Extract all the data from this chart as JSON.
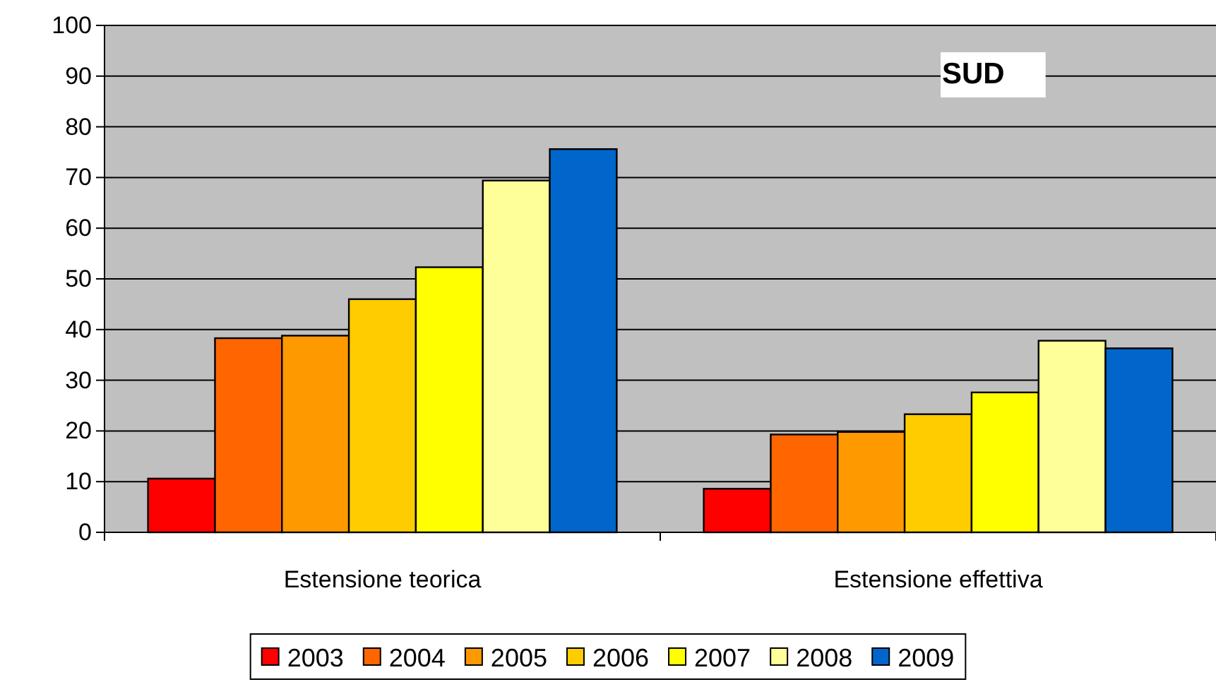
{
  "chart_data": {
    "type": "bar",
    "title": "SUD",
    "categories": [
      "Estensione teorica",
      "Estensione effettiva"
    ],
    "series": [
      {
        "name": "2003",
        "color": "#ff0000",
        "values": [
          10.6,
          8.6
        ]
      },
      {
        "name": "2004",
        "color": "#ff6600",
        "values": [
          38.3,
          19.3
        ]
      },
      {
        "name": "2005",
        "color": "#ff9900",
        "values": [
          38.8,
          19.8
        ]
      },
      {
        "name": "2006",
        "color": "#ffcc00",
        "values": [
          46.0,
          23.3
        ]
      },
      {
        "name": "2007",
        "color": "#ffff00",
        "values": [
          52.3,
          27.6
        ]
      },
      {
        "name": "2008",
        "color": "#ffff99",
        "values": [
          69.4,
          37.8
        ]
      },
      {
        "name": "2009",
        "color": "#0066cc",
        "values": [
          75.6,
          36.3
        ]
      }
    ],
    "ylim": [
      0,
      100
    ],
    "yticks": [
      0,
      10,
      20,
      30,
      40,
      50,
      60,
      70,
      80,
      90,
      100
    ],
    "grid": "y",
    "legend": "bottom"
  }
}
